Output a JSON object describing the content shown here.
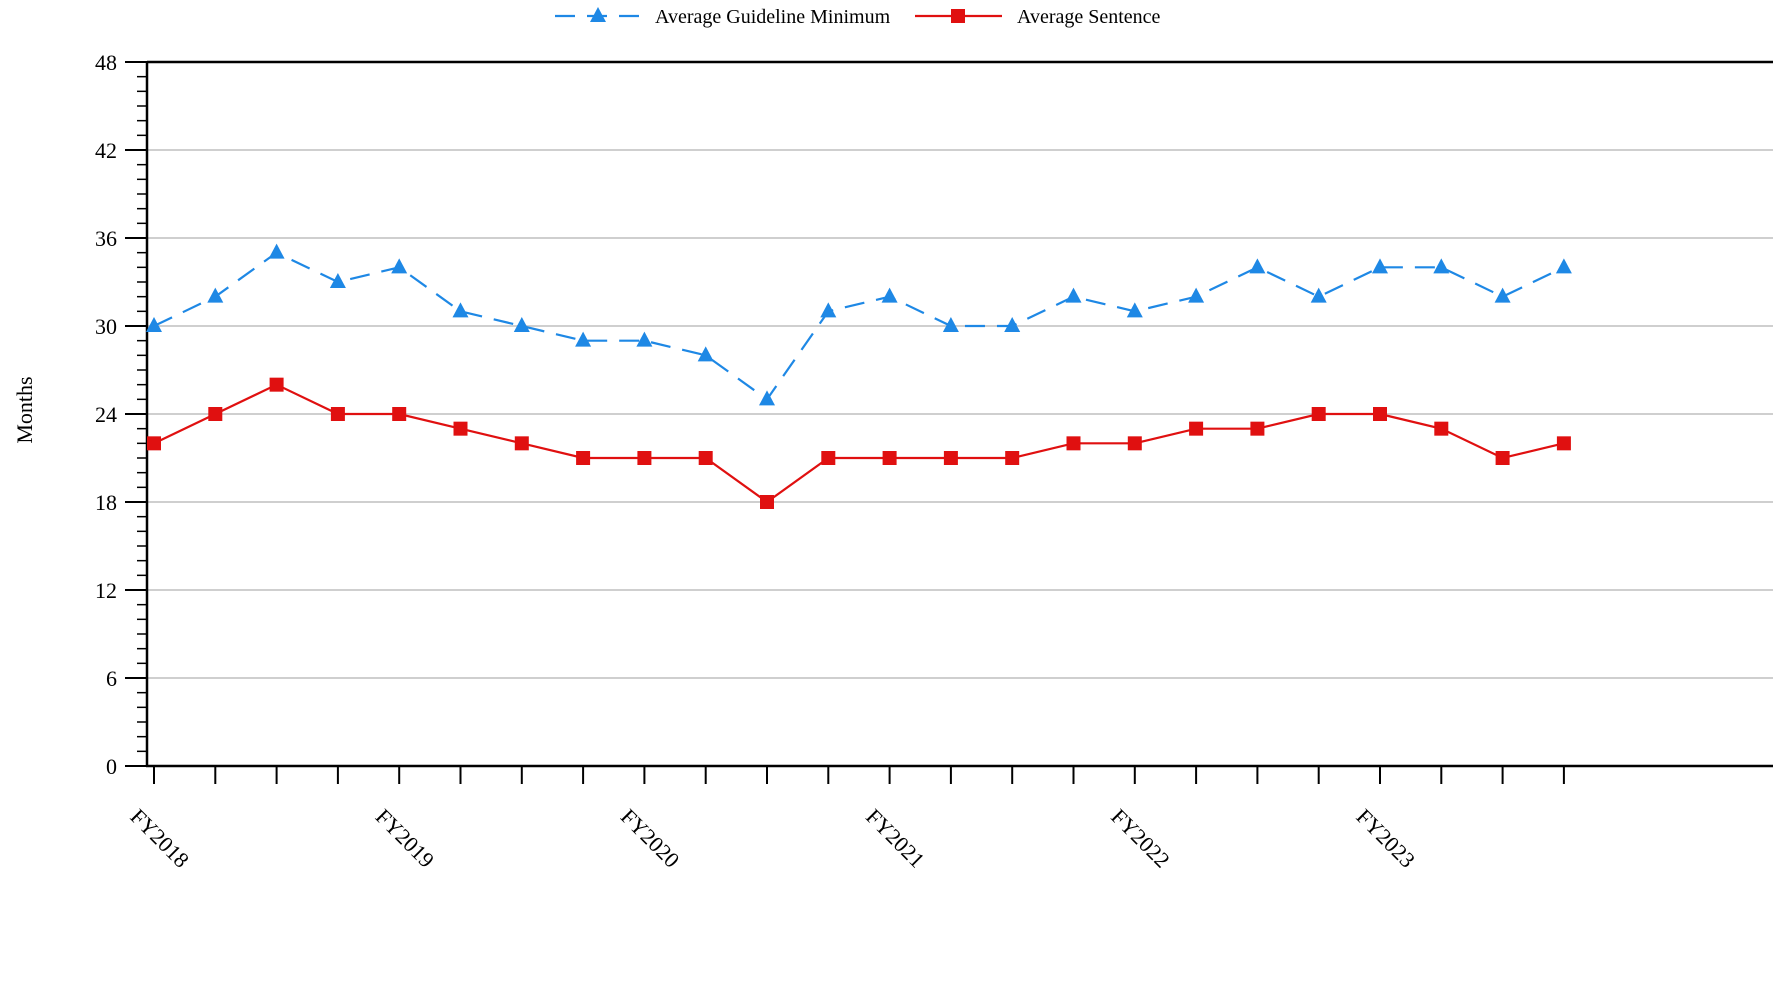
{
  "chart_data": {
    "type": "line",
    "title": "",
    "xlabel": "",
    "ylabel": "Months",
    "ylim": [
      0,
      48
    ],
    "yticks": [
      0,
      6,
      12,
      18,
      24,
      30,
      36,
      42,
      48
    ],
    "grid": "horizontal",
    "legend_position": "top",
    "x_labels": [
      "FY2018",
      "FY2019",
      "FY2020",
      "FY2021",
      "FY2022",
      "FY2023"
    ],
    "x_label_every": 4,
    "num_points": 24,
    "series": [
      {
        "name": "Average Guideline Minimum",
        "color": "#1e88e5",
        "line_style": "dashed",
        "marker": "triangle",
        "values": [
          30,
          32,
          35,
          33,
          34,
          31,
          30,
          29,
          29,
          28,
          25,
          31,
          32,
          30,
          30,
          32,
          31,
          32,
          34,
          32,
          34,
          34,
          32,
          34
        ]
      },
      {
        "name": "Average Sentence",
        "color": "#e01010",
        "line_style": "solid",
        "marker": "square",
        "values": [
          22,
          24,
          26,
          24,
          24,
          23,
          22,
          21,
          21,
          21,
          18,
          21,
          21,
          21,
          21,
          22,
          22,
          23,
          23,
          24,
          24,
          23,
          21,
          22
        ]
      }
    ]
  }
}
